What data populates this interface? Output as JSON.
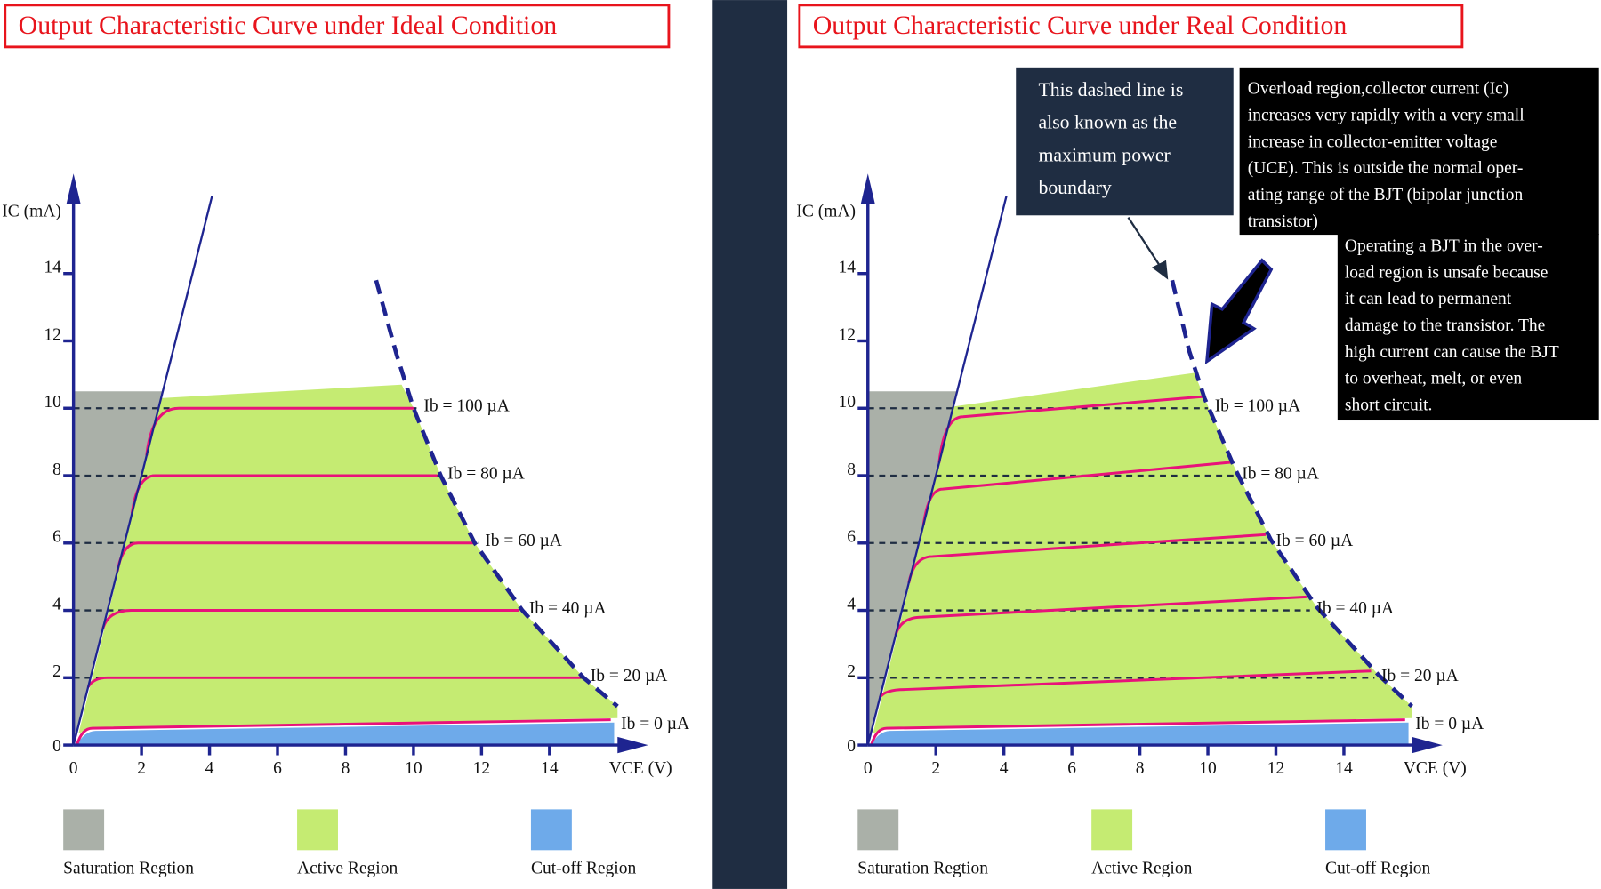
{
  "colors": {
    "axis": "#1e2490",
    "curve": "#e8127a",
    "saturation": "#aab0a8",
    "active": "#c5eb72",
    "cutoff": "#6eaaea",
    "title": "#e8141c",
    "divider": "#1f2d42",
    "callout_navy": "#1f2d42",
    "callout_black": "#000000"
  },
  "legend": [
    {
      "label": "Saturation Regtion",
      "color": "#aab0a8"
    },
    {
      "label": "Active Region",
      "color": "#c5eb72"
    },
    {
      "label": "Cut-off Region",
      "color": "#6eaaea"
    }
  ],
  "callouts": {
    "boundary_note": [
      "This dashed line is",
      "also known as the",
      "maximum power",
      "boundary"
    ],
    "overload_note": [
      "Overload region,collector current (Ic)",
      "increases very rapidly with a very small",
      "increase in collector-emitter voltage",
      "(UCE). This is outside the normal oper-",
      "ating range of the BJT (bipolar junction",
      "transistor)"
    ],
    "unsafe_note": [
      "Operating a BJT in the over-",
      "load region is unsafe because",
      "it can lead to permanent",
      "damage to the transistor. The",
      "high current can cause the BJT",
      "to overheat, melt, or even",
      "short circuit."
    ]
  },
  "chart_data": [
    {
      "type": "line",
      "title": "Output Characteristic Curve under Ideal Condition",
      "xlabel": "VCE (V)",
      "ylabel": "IC (mA)",
      "xlim": [
        0,
        17
      ],
      "ylim": [
        0,
        16
      ],
      "xticks": [
        "0",
        "2",
        "4",
        "6",
        "8",
        "10",
        "12",
        "14"
      ],
      "yticks": [
        "0",
        "2",
        "4",
        "6",
        "8",
        "10",
        "12",
        "14"
      ],
      "saturation_slope_mA_per_V": 4,
      "boundary": [
        [
          8.9,
          13.8
        ],
        [
          9.5,
          11.6
        ],
        [
          10,
          10
        ],
        [
          10.8,
          8
        ],
        [
          11.8,
          6
        ],
        [
          13.2,
          4
        ],
        [
          15,
          2
        ],
        [
          16,
          1.15
        ]
      ],
      "series": [
        {
          "name": "Ib = 100 µA",
          "ib": 100,
          "knee_vce": 3.1,
          "knee_ic": 10,
          "end_vce": 10,
          "end_ic": 10
        },
        {
          "name": "Ib = 80 µA",
          "ib": 80,
          "knee_vce": 2.4,
          "knee_ic": 8,
          "end_vce": 10.7,
          "end_ic": 8
        },
        {
          "name": "Ib = 60 µA",
          "ib": 60,
          "knee_vce": 1.9,
          "knee_ic": 6,
          "end_vce": 11.8,
          "end_ic": 6
        },
        {
          "name": "Ib = 40 µA",
          "ib": 40,
          "knee_vce": 1.7,
          "knee_ic": 4,
          "end_vce": 13.1,
          "end_ic": 4
        },
        {
          "name": "Ib = 20 µA",
          "ib": 20,
          "knee_vce": 1.0,
          "knee_ic": 2,
          "end_vce": 14.9,
          "end_ic": 2
        },
        {
          "name": "Ib = 0 µA",
          "ib": 0,
          "knee_vce": 0.55,
          "knee_ic": 0.5,
          "end_vce": 15.8,
          "end_ic": 0.75
        }
      ]
    },
    {
      "type": "line",
      "title": "Output Characteristic Curve under Real Condition",
      "xlabel": "VCE (V)",
      "ylabel": "IC (mA)",
      "xlim": [
        0,
        17
      ],
      "ylim": [
        0,
        16
      ],
      "xticks": [
        "0",
        "2",
        "4",
        "6",
        "8",
        "10",
        "12",
        "14"
      ],
      "yticks": [
        "0",
        "2",
        "4",
        "6",
        "8",
        "10",
        "12",
        "14"
      ],
      "saturation_slope_mA_per_V": 4,
      "boundary": [
        [
          8.95,
          13.8
        ],
        [
          9.45,
          11.7
        ],
        [
          9.9,
          10.3
        ],
        [
          10.8,
          8.2
        ],
        [
          11.85,
          6.1
        ],
        [
          13.2,
          4.1
        ],
        [
          15,
          2.1
        ],
        [
          16,
          1.15
        ]
      ],
      "series": [
        {
          "name": "Ib = 100 µA",
          "ib": 100,
          "knee_vce": 2.8,
          "knee_ic": 9.75,
          "end_vce": 9.9,
          "end_ic": 10.35
        },
        {
          "name": "Ib = 80 µA",
          "ib": 80,
          "knee_vce": 2.2,
          "knee_ic": 7.6,
          "end_vce": 10.7,
          "end_ic": 8.4
        },
        {
          "name": "Ib = 60 µA",
          "ib": 60,
          "knee_vce": 1.9,
          "knee_ic": 5.6,
          "end_vce": 11.7,
          "end_ic": 6.25
        },
        {
          "name": "Ib = 40 µA",
          "ib": 40,
          "knee_vce": 1.6,
          "knee_ic": 3.8,
          "end_vce": 12.9,
          "end_ic": 4.4
        },
        {
          "name": "Ib = 20 µA",
          "ib": 20,
          "knee_vce": 1.1,
          "knee_ic": 1.65,
          "end_vce": 14.8,
          "end_ic": 2.2
        },
        {
          "name": "Ib = 0 µA",
          "ib": 0,
          "knee_vce": 0.55,
          "knee_ic": 0.5,
          "end_vce": 15.8,
          "end_ic": 0.75
        }
      ]
    }
  ]
}
